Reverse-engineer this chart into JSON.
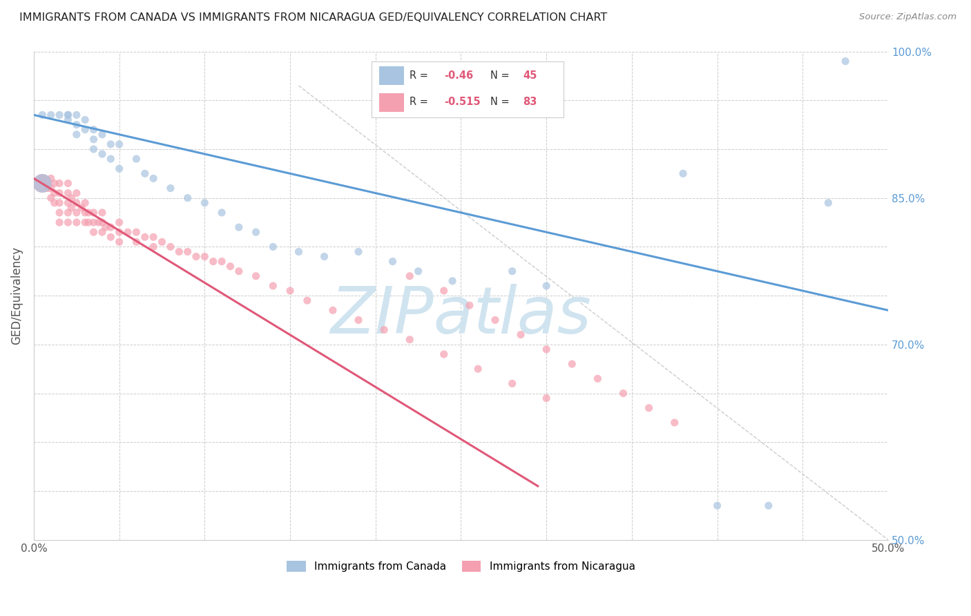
{
  "title": "IMMIGRANTS FROM CANADA VS IMMIGRANTS FROM NICARAGUA GED/EQUIVALENCY CORRELATION CHART",
  "source": "Source: ZipAtlas.com",
  "ylabel": "GED/Equivalency",
  "legend_canada": "Immigrants from Canada",
  "legend_nicaragua": "Immigrants from Nicaragua",
  "R_canada": -0.46,
  "N_canada": 45,
  "R_nicaragua": -0.515,
  "N_nicaragua": 83,
  "xlim": [
    0.0,
    0.5
  ],
  "ylim": [
    0.5,
    1.0
  ],
  "color_canada": "#a8c4e0",
  "color_nicaragua": "#f4a0b0",
  "line_canada": "#5b9bd5",
  "line_nicaragua": "#e05878",
  "watermark_text": "ZIPatlas",
  "watermark_color": "#d0e4f0",
  "background_color": "#ffffff",
  "grid_color": "#cccccc",
  "blue_line_x": [
    0.0,
    0.5
  ],
  "blue_line_y": [
    0.935,
    0.735
  ],
  "pink_line_x": [
    0.0,
    0.295
  ],
  "pink_line_y": [
    0.87,
    0.555
  ],
  "dash_line_x": [
    0.155,
    0.5
  ],
  "dash_line_y": [
    0.965,
    0.5
  ],
  "canada_x": [
    0.005,
    0.01,
    0.015,
    0.02,
    0.02,
    0.02,
    0.025,
    0.025,
    0.025,
    0.03,
    0.03,
    0.035,
    0.035,
    0.035,
    0.04,
    0.04,
    0.045,
    0.045,
    0.05,
    0.05,
    0.06,
    0.065,
    0.07,
    0.08,
    0.09,
    0.1,
    0.11,
    0.12,
    0.13,
    0.14,
    0.155,
    0.17,
    0.19,
    0.21,
    0.225,
    0.245,
    0.28,
    0.3,
    0.38,
    0.4,
    0.43,
    0.465,
    0.475
  ],
  "canada_y": [
    0.935,
    0.935,
    0.935,
    0.935,
    0.935,
    0.93,
    0.935,
    0.925,
    0.915,
    0.93,
    0.92,
    0.92,
    0.91,
    0.9,
    0.915,
    0.895,
    0.905,
    0.89,
    0.905,
    0.88,
    0.89,
    0.875,
    0.87,
    0.86,
    0.85,
    0.845,
    0.835,
    0.82,
    0.815,
    0.8,
    0.795,
    0.79,
    0.795,
    0.785,
    0.775,
    0.765,
    0.775,
    0.76,
    0.875,
    0.535,
    0.535,
    0.845,
    0.99
  ],
  "canada_large_x": [
    0.005
  ],
  "canada_large_y": [
    0.865
  ],
  "nicaragua_x": [
    0.005,
    0.007,
    0.008,
    0.01,
    0.01,
    0.01,
    0.012,
    0.012,
    0.012,
    0.015,
    0.015,
    0.015,
    0.015,
    0.015,
    0.02,
    0.02,
    0.02,
    0.02,
    0.02,
    0.022,
    0.022,
    0.025,
    0.025,
    0.025,
    0.025,
    0.028,
    0.03,
    0.03,
    0.03,
    0.032,
    0.032,
    0.035,
    0.035,
    0.035,
    0.038,
    0.04,
    0.04,
    0.04,
    0.042,
    0.045,
    0.045,
    0.05,
    0.05,
    0.05,
    0.055,
    0.06,
    0.06,
    0.065,
    0.07,
    0.07,
    0.075,
    0.08,
    0.085,
    0.09,
    0.095,
    0.1,
    0.105,
    0.11,
    0.115,
    0.12,
    0.13,
    0.14,
    0.15,
    0.16,
    0.175,
    0.19,
    0.205,
    0.22,
    0.24,
    0.26,
    0.28,
    0.3,
    0.22,
    0.24,
    0.255,
    0.27,
    0.285,
    0.3,
    0.315,
    0.33,
    0.345,
    0.36,
    0.375
  ],
  "nicaragua_y": [
    0.87,
    0.865,
    0.86,
    0.87,
    0.86,
    0.85,
    0.865,
    0.855,
    0.845,
    0.865,
    0.855,
    0.845,
    0.835,
    0.825,
    0.865,
    0.855,
    0.845,
    0.835,
    0.825,
    0.85,
    0.84,
    0.855,
    0.845,
    0.835,
    0.825,
    0.84,
    0.845,
    0.835,
    0.825,
    0.835,
    0.825,
    0.835,
    0.825,
    0.815,
    0.825,
    0.835,
    0.825,
    0.815,
    0.82,
    0.82,
    0.81,
    0.825,
    0.815,
    0.805,
    0.815,
    0.815,
    0.805,
    0.81,
    0.81,
    0.8,
    0.805,
    0.8,
    0.795,
    0.795,
    0.79,
    0.79,
    0.785,
    0.785,
    0.78,
    0.775,
    0.77,
    0.76,
    0.755,
    0.745,
    0.735,
    0.725,
    0.715,
    0.705,
    0.69,
    0.675,
    0.66,
    0.645,
    0.77,
    0.755,
    0.74,
    0.725,
    0.71,
    0.695,
    0.68,
    0.665,
    0.65,
    0.635,
    0.62
  ],
  "nicaragua_large_x": [
    0.005
  ],
  "nicaragua_large_y": [
    0.865
  ]
}
